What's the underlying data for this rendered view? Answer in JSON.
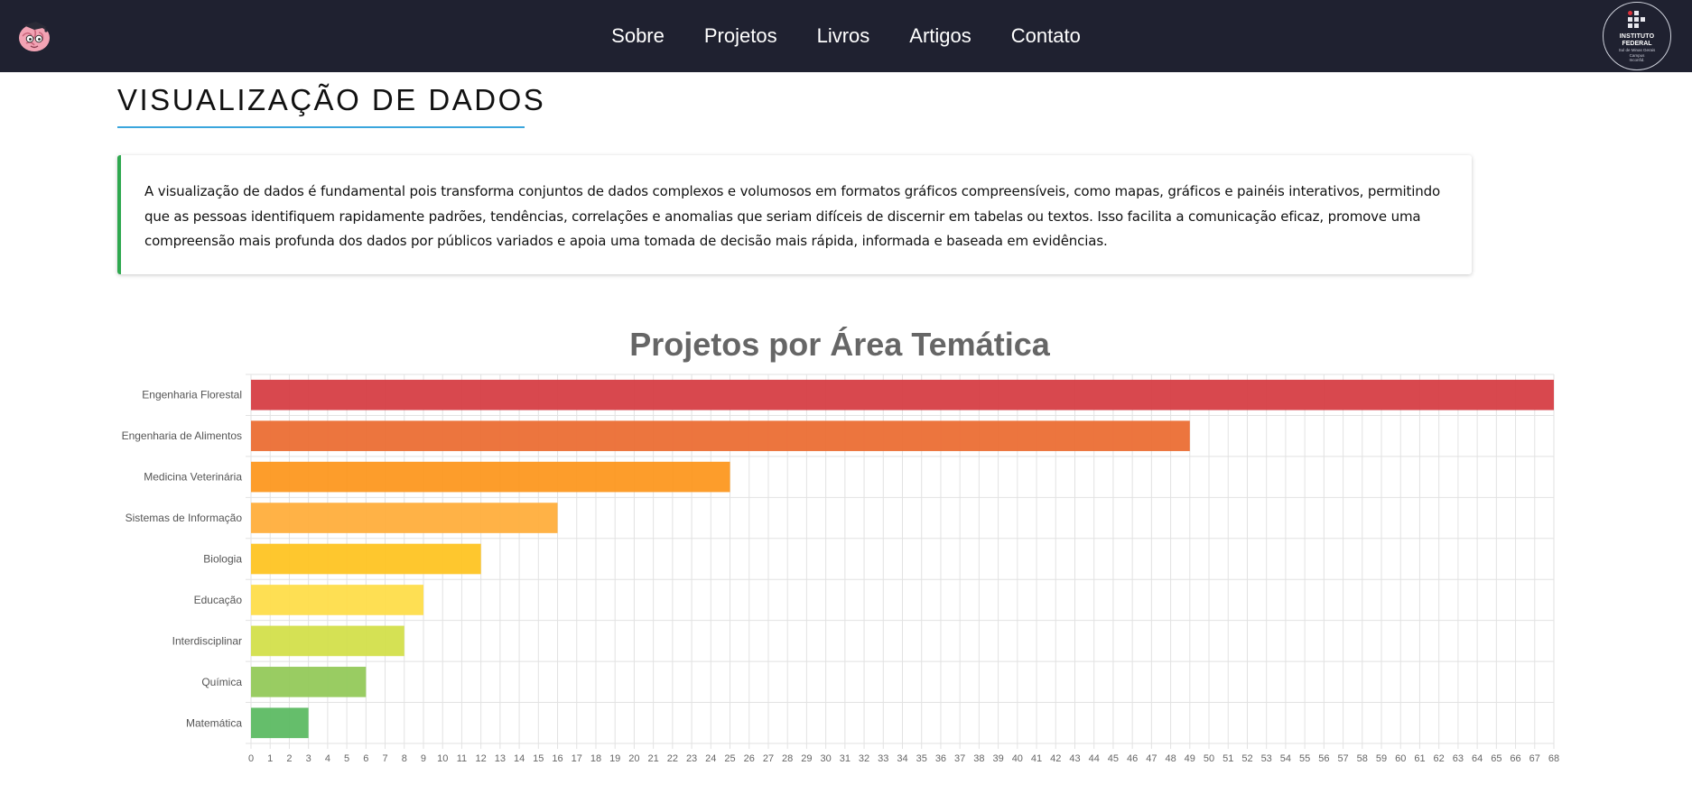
{
  "nav": {
    "items": [
      {
        "label": "Sobre"
      },
      {
        "label": "Projetos"
      },
      {
        "label": "Livros"
      },
      {
        "label": "Artigos"
      },
      {
        "label": "Contato"
      }
    ]
  },
  "institution_logo": {
    "line1": "INSTITUTO",
    "line2": "FEDERAL",
    "line3": "Sul de Minas Gerais",
    "line4": "Campus",
    "line5": "Inconfid."
  },
  "page": {
    "title": "VISUALIZAÇÃO DE DADOS",
    "description": "A visualização de dados é fundamental pois transforma conjuntos de dados complexos e volumosos em formatos gráficos compreensíveis, como mapas, gráficos e painéis interativos, permitindo que as pessoas identifiquem rapidamente padrões, tendências, correlações e anomalias que seriam difíceis de discernir em tabelas ou textos. Isso facilita a comunicação eficaz, promove uma compreensão mais profunda dos dados por públicos variados e apoia uma tomada de decisão mais rápida, informada e baseada em evidências."
  },
  "colors": {
    "navbar": "#1f2130",
    "accent_underline": "#3aa6dd",
    "card_border": "#2fa84f"
  },
  "chart_data": {
    "type": "bar",
    "orientation": "horizontal",
    "title": "Projetos por Área Temática",
    "xlabel": "",
    "ylabel": "",
    "xlim": [
      0,
      68
    ],
    "x_tick_step": 1,
    "grid": true,
    "categories": [
      "Engenharia Florestal",
      "Engenharia de Alimentos",
      "Medicina Veterinária",
      "Sistemas de Informação",
      "Biologia",
      "Educação",
      "Interdisciplinar",
      "Química",
      "Matemática"
    ],
    "values": [
      68,
      49,
      25,
      16,
      12,
      9,
      8,
      6,
      3
    ],
    "bar_colors": [
      "#d63e44",
      "#eb6e34",
      "#fd9820",
      "#ffae3c",
      "#fec423",
      "#fedd4a",
      "#d3df4b",
      "#94c95a",
      "#5dbb63"
    ]
  }
}
